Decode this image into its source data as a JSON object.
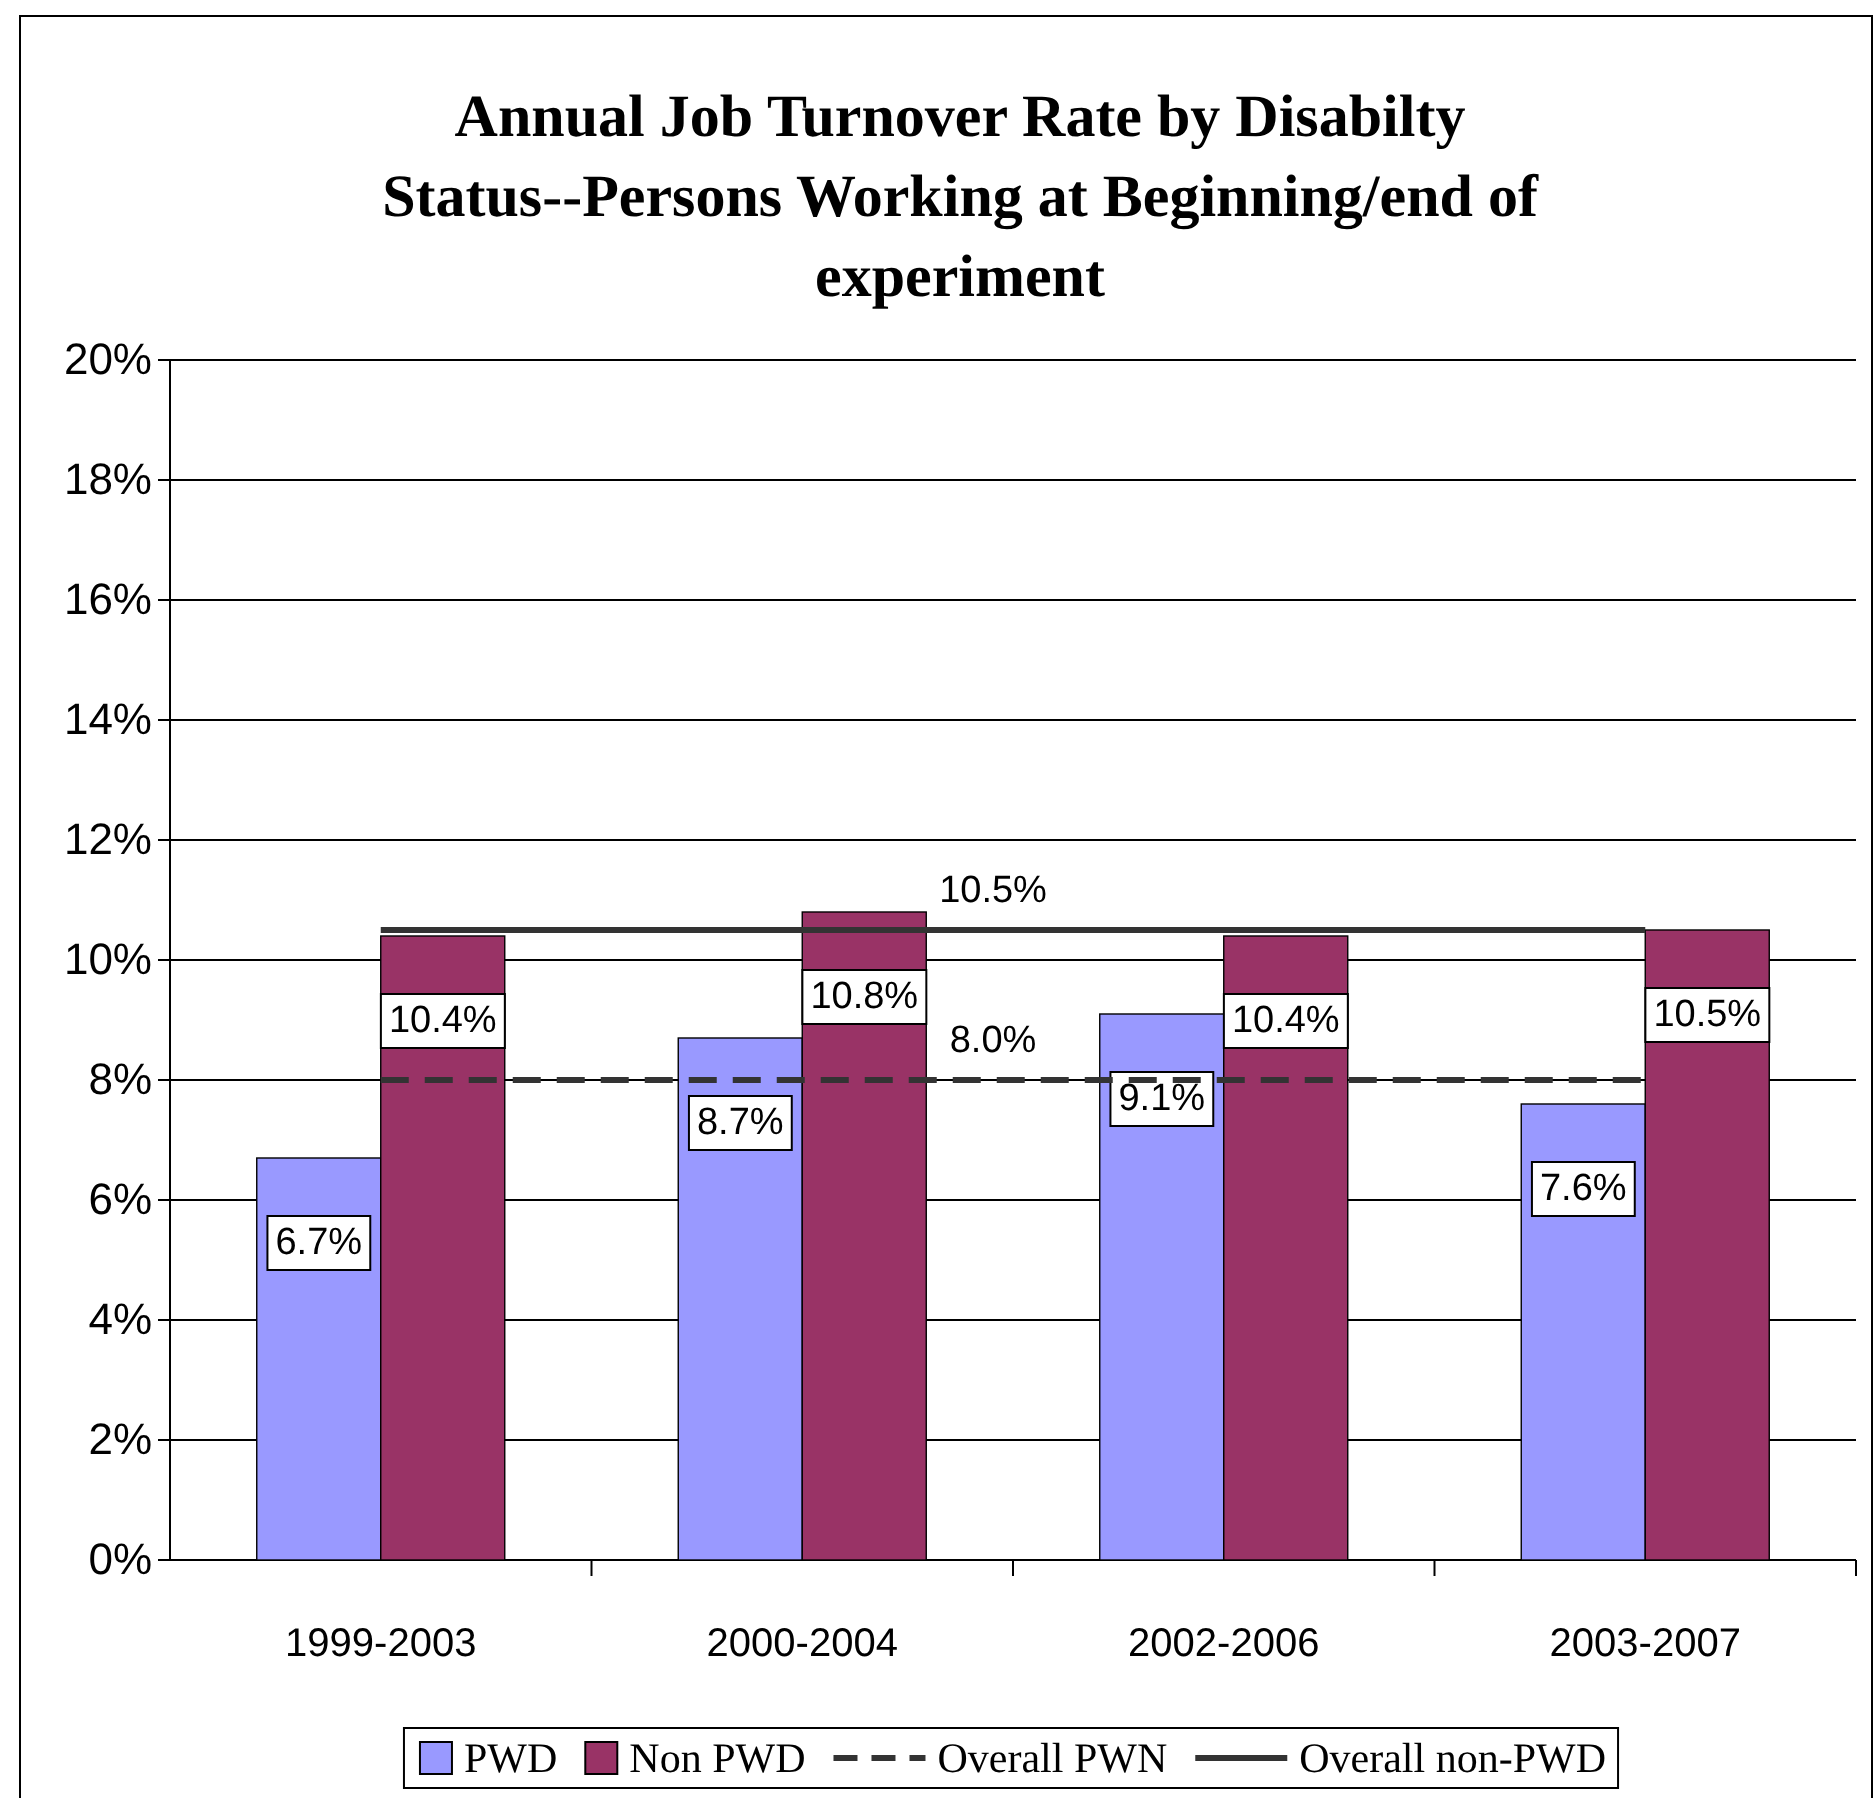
{
  "chart_data": {
    "type": "bar",
    "title": "Annual Job Turnover Rate by Disabilty Status--Persons Working at Beginning/end of experiment",
    "categories": [
      "1999-2003",
      "2000-2004",
      "2002-2006",
      "2003-2007"
    ],
    "series": [
      {
        "name": "PWD",
        "color": "#9999ff",
        "values": [
          6.7,
          8.7,
          9.1,
          7.6
        ],
        "value_labels": [
          "6.7%",
          "8.7%",
          "9.1%",
          "7.6%"
        ]
      },
      {
        "name": "Non PWD",
        "color": "#993366",
        "values": [
          10.4,
          10.8,
          10.4,
          10.5
        ],
        "value_labels": [
          "10.4%",
          "10.8%",
          "10.4%",
          "10.5%"
        ]
      },
      {
        "name": "Overall PWN",
        "type": "line",
        "color": "#333333",
        "line_style": "dashed",
        "values": [
          8.0,
          8.0,
          8.0,
          8.0
        ]
      },
      {
        "name": "Overall non-PWD",
        "type": "line",
        "color": "#333333",
        "line_style": "solid",
        "values": [
          10.5,
          10.5,
          10.5,
          10.5
        ]
      }
    ],
    "annotations": [
      {
        "text": "8.0%",
        "y": 8.0
      },
      {
        "text": "10.5%",
        "y": 10.5
      }
    ],
    "ylim": [
      0,
      20
    ],
    "yticks": [
      {
        "value": 0,
        "label": "0%"
      },
      {
        "value": 2,
        "label": "2%"
      },
      {
        "value": 4,
        "label": "4%"
      },
      {
        "value": 6,
        "label": "6%"
      },
      {
        "value": 8,
        "label": "8%"
      },
      {
        "value": 10,
        "label": "10%"
      },
      {
        "value": 12,
        "label": "12%"
      },
      {
        "value": 14,
        "label": "14%"
      },
      {
        "value": 16,
        "label": "16%"
      },
      {
        "value": 18,
        "label": "18%"
      },
      {
        "value": 20,
        "label": "20%"
      }
    ],
    "grid": "y",
    "legend": "bottom"
  }
}
